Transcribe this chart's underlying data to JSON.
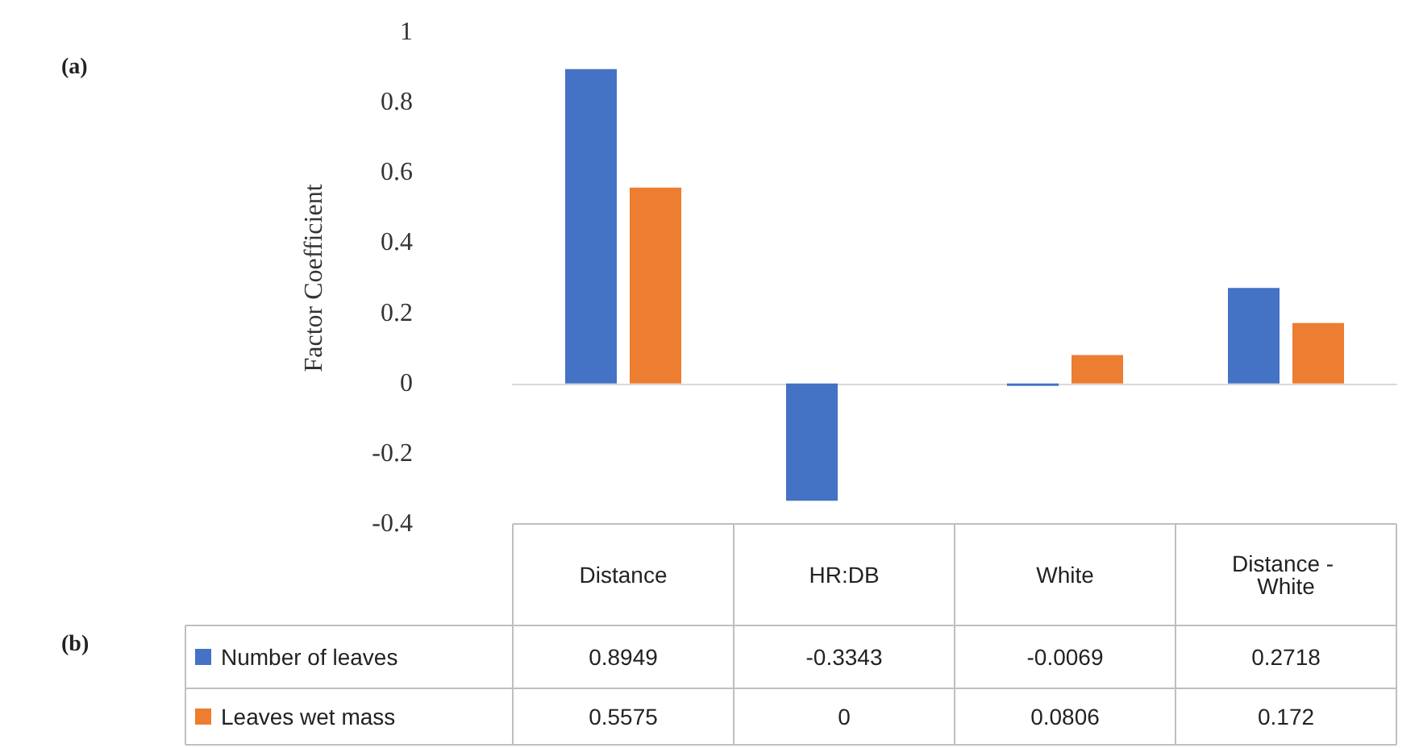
{
  "chart_data": {
    "type": "bar",
    "ylabel": "Factor Coefficient",
    "categories": [
      "Distance",
      "HR:DB",
      "White",
      "Distance - White"
    ],
    "series": [
      {
        "name": "Number of leaves",
        "color": "#4472c4",
        "values": [
          0.8949,
          -0.3343,
          -0.0069,
          0.2718
        ]
      },
      {
        "name": "Leaves wet mass",
        "color": "#ed7d31",
        "values": [
          0.5575,
          0,
          0.0806,
          0.172
        ]
      }
    ],
    "ylim": [
      -0.4,
      1
    ],
    "yticks": [
      -0.4,
      -0.2,
      0,
      0.2,
      0.4,
      0.6,
      0.8,
      1
    ],
    "legend": "bottom",
    "data_labels": true,
    "annotations": [
      "(a)",
      "(b)"
    ]
  }
}
